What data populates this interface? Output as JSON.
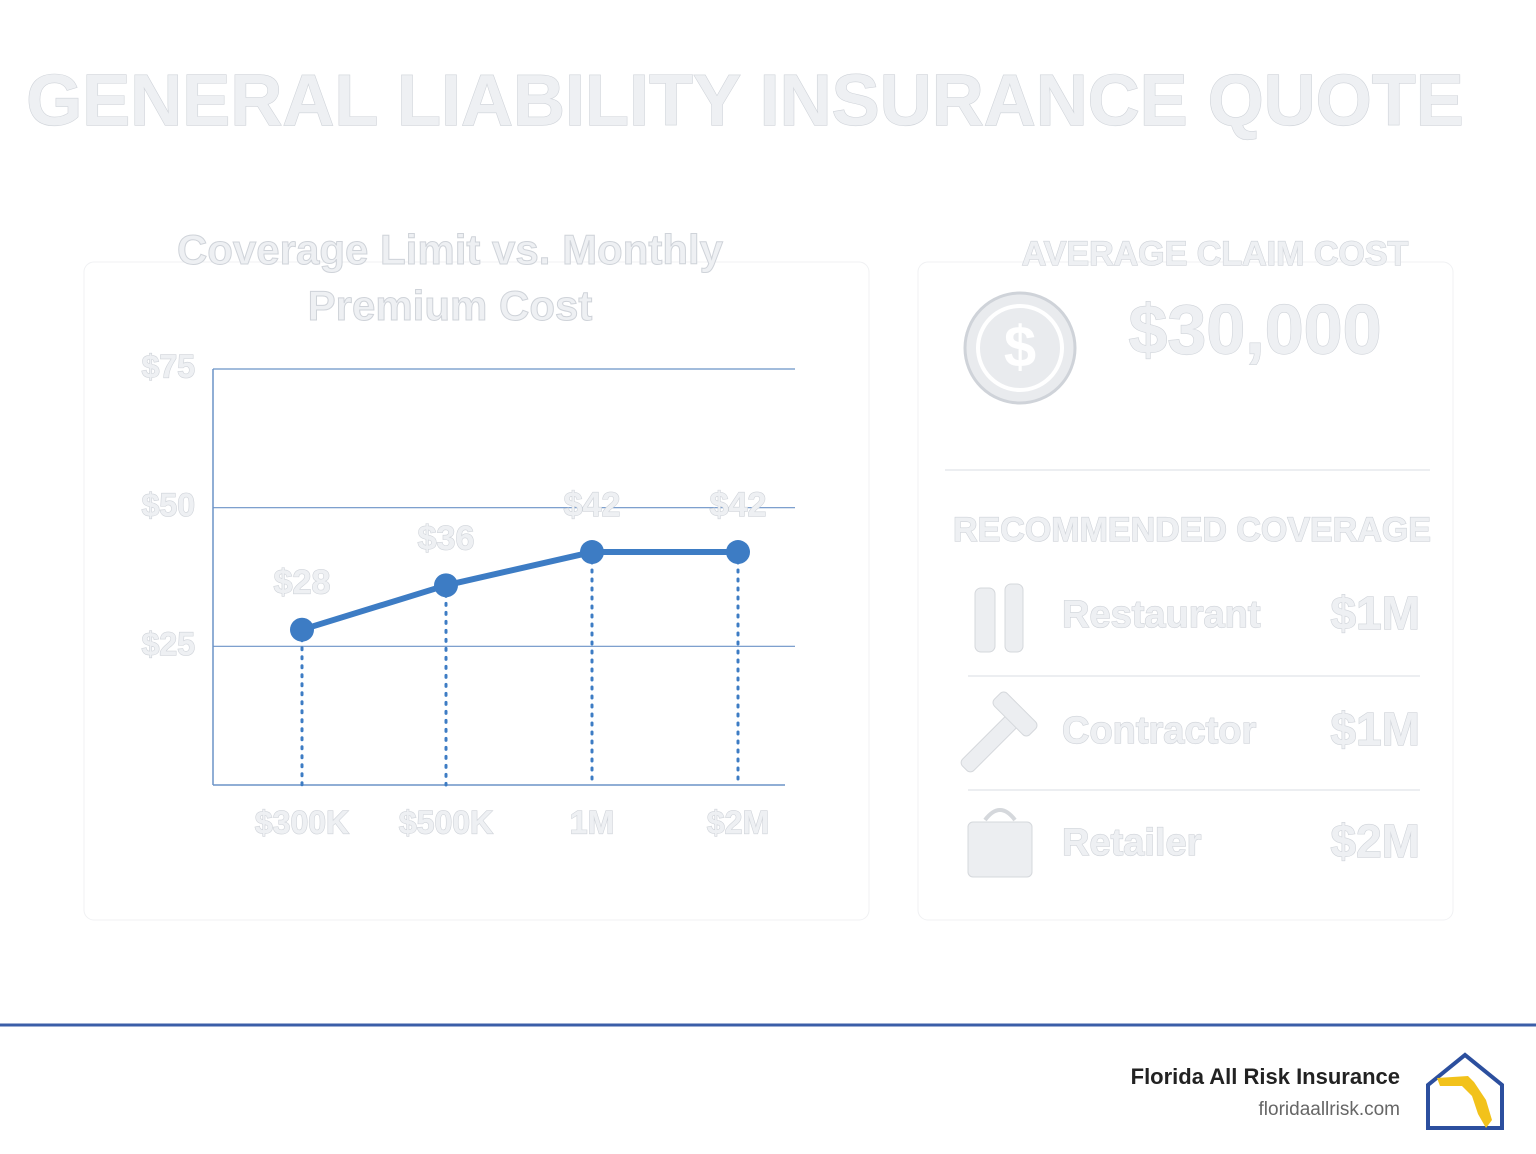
{
  "header": {
    "title": "GENERAL LIABILITY INSURANCE QUOTE"
  },
  "chart_data": {
    "type": "line",
    "title": "Coverage Limit vs. Monthly Premium Cost",
    "categories": [
      "$300K",
      "$500K",
      "1M",
      "$2M"
    ],
    "values": [
      28,
      36,
      42,
      42
    ],
    "value_labels": [
      "$28",
      "$36",
      "$42",
      "$42"
    ],
    "color": "#3d7cc4",
    "ylim": [
      0,
      75
    ],
    "yticks": [
      {
        "value": 25,
        "label": "$25"
      },
      {
        "value": 50,
        "label": "$50"
      },
      {
        "value": 75,
        "label": "$75"
      }
    ],
    "grid": true
  },
  "claim_cost": {
    "title": "AVERAGE CLAIM COST",
    "value": "$30,000"
  },
  "coverage": {
    "title": "RECOMMENDED COVERAGE",
    "rows": [
      {
        "label": "Restaurant",
        "value": "$1M"
      },
      {
        "label": "Contractor",
        "value": "$1M"
      },
      {
        "label": "Retailer",
        "value": "$2M"
      }
    ]
  },
  "footer": {
    "company": "Florida All Risk Insurance",
    "url": "floridaallrisk.com"
  }
}
